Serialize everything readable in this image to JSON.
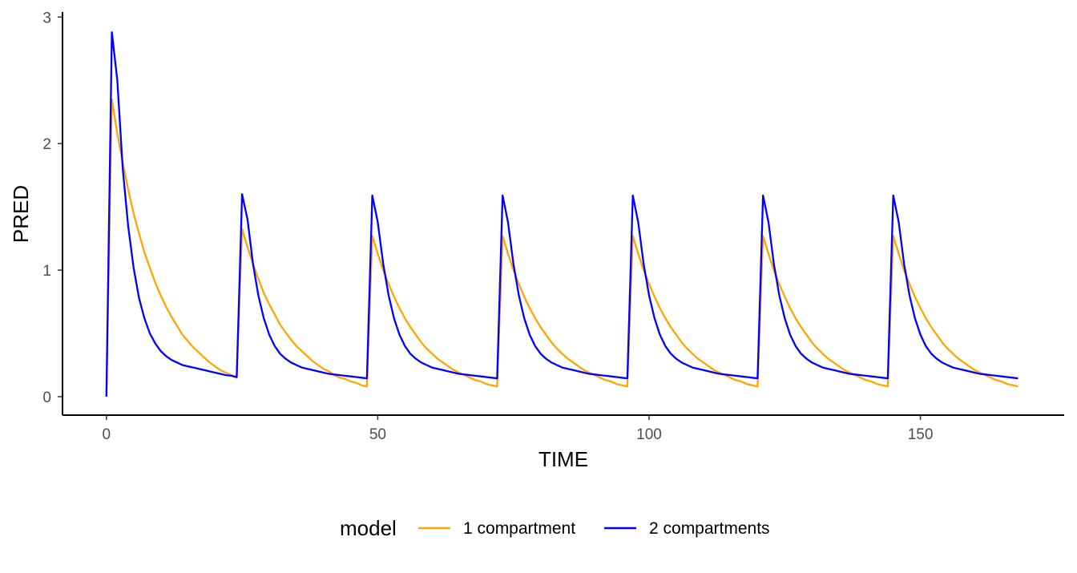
{
  "chart_data": {
    "type": "line",
    "title": "",
    "xlabel": "TIME",
    "ylabel": "PRED",
    "xlim": [
      -8.1,
      176.5
    ],
    "ylim": [
      -0.146,
      3.04
    ],
    "xticks": [
      0,
      50,
      100,
      150
    ],
    "yticks": [
      0,
      1,
      2,
      3
    ],
    "grid": false,
    "legend": {
      "title": "model",
      "placement": "bottom"
    },
    "x": [
      0,
      1,
      2,
      3,
      4,
      5,
      6,
      7,
      8,
      9,
      10,
      11,
      12,
      13,
      14,
      15,
      16,
      17,
      18,
      19,
      20,
      21,
      22,
      23,
      24,
      25,
      26,
      27,
      28,
      29,
      30,
      31,
      32,
      33,
      34,
      35,
      36,
      37,
      38,
      39,
      40,
      41,
      42,
      43,
      44,
      45,
      46,
      47,
      48,
      49,
      50,
      51,
      52,
      53,
      54,
      55,
      56,
      57,
      58,
      59,
      60,
      61,
      62,
      63,
      64,
      65,
      66,
      67,
      68,
      69,
      70,
      71,
      72,
      73,
      74,
      75,
      76,
      77,
      78,
      79,
      80,
      81,
      82,
      83,
      84,
      85,
      86,
      87,
      88,
      89,
      90,
      91,
      92,
      93,
      94,
      95,
      96,
      97,
      98,
      99,
      100,
      101,
      102,
      103,
      104,
      105,
      106,
      107,
      108,
      109,
      110,
      111,
      112,
      113,
      114,
      115,
      116,
      117,
      118,
      119,
      120,
      121,
      122,
      123,
      124,
      125,
      126,
      127,
      128,
      129,
      130,
      131,
      132,
      133,
      134,
      135,
      136,
      137,
      138,
      139,
      140,
      141,
      142,
      143,
      144,
      145,
      146,
      147,
      148,
      149,
      150,
      151,
      152,
      153,
      154,
      155,
      156,
      157,
      158,
      159,
      160,
      161,
      162,
      163,
      164,
      165,
      166,
      167,
      168
    ],
    "series": [
      {
        "name": "1 compartment",
        "color": "#FFA500",
        "values": [
          0,
          2.35,
          2.08,
          1.85,
          1.64,
          1.45,
          1.29,
          1.14,
          1.02,
          0.9,
          0.8,
          0.71,
          0.63,
          0.56,
          0.49,
          0.44,
          0.39,
          0.35,
          0.31,
          0.27,
          0.24,
          0.21,
          0.19,
          0.17,
          0.15,
          1.33,
          1.18,
          1.05,
          0.93,
          0.82,
          0.73,
          0.65,
          0.57,
          0.51,
          0.45,
          0.4,
          0.36,
          0.32,
          0.28,
          0.25,
          0.22,
          0.2,
          0.17,
          0.15,
          0.14,
          0.12,
          0.11,
          0.09,
          0.08,
          1.27,
          1.13,
          1.0,
          0.89,
          0.79,
          0.7,
          0.62,
          0.55,
          0.49,
          0.43,
          0.38,
          0.34,
          0.3,
          0.27,
          0.24,
          0.21,
          0.19,
          0.17,
          0.15,
          0.13,
          0.12,
          0.1,
          0.09,
          0.08,
          1.27,
          1.13,
          1.0,
          0.89,
          0.79,
          0.7,
          0.62,
          0.55,
          0.49,
          0.43,
          0.38,
          0.34,
          0.3,
          0.27,
          0.24,
          0.21,
          0.19,
          0.17,
          0.15,
          0.13,
          0.12,
          0.1,
          0.09,
          0.08,
          1.27,
          1.13,
          1.0,
          0.89,
          0.79,
          0.7,
          0.62,
          0.55,
          0.49,
          0.43,
          0.38,
          0.34,
          0.3,
          0.27,
          0.24,
          0.21,
          0.19,
          0.17,
          0.15,
          0.13,
          0.12,
          0.1,
          0.09,
          0.08,
          1.27,
          1.13,
          1.0,
          0.89,
          0.79,
          0.7,
          0.62,
          0.55,
          0.49,
          0.43,
          0.38,
          0.34,
          0.3,
          0.27,
          0.24,
          0.21,
          0.19,
          0.17,
          0.15,
          0.13,
          0.12,
          0.1,
          0.09,
          0.08,
          1.27,
          1.13,
          1.0,
          0.89,
          0.79,
          0.7,
          0.62,
          0.55,
          0.49,
          0.43,
          0.38,
          0.34,
          0.3,
          0.27,
          0.24,
          0.21,
          0.19,
          0.17,
          0.15,
          0.13,
          0.12,
          0.1,
          0.09,
          0.08
        ]
      },
      {
        "name": "2 compartments",
        "color": "#0000FF",
        "values": [
          0,
          2.88,
          2.5,
          1.8,
          1.35,
          1.02,
          0.78,
          0.62,
          0.5,
          0.42,
          0.36,
          0.32,
          0.29,
          0.27,
          0.25,
          0.24,
          0.23,
          0.22,
          0.21,
          0.2,
          0.19,
          0.18,
          0.17,
          0.165,
          0.155,
          1.6,
          1.4,
          1.05,
          0.8,
          0.62,
          0.49,
          0.4,
          0.34,
          0.3,
          0.27,
          0.25,
          0.23,
          0.22,
          0.21,
          0.2,
          0.19,
          0.18,
          0.175,
          0.17,
          0.165,
          0.16,
          0.155,
          0.15,
          0.145,
          1.59,
          1.38,
          1.05,
          0.8,
          0.62,
          0.49,
          0.4,
          0.34,
          0.3,
          0.27,
          0.25,
          0.23,
          0.22,
          0.21,
          0.2,
          0.19,
          0.18,
          0.175,
          0.17,
          0.165,
          0.16,
          0.155,
          0.15,
          0.145,
          1.59,
          1.38,
          1.05,
          0.8,
          0.62,
          0.49,
          0.4,
          0.34,
          0.3,
          0.27,
          0.25,
          0.23,
          0.22,
          0.21,
          0.2,
          0.19,
          0.18,
          0.175,
          0.17,
          0.165,
          0.16,
          0.155,
          0.15,
          0.145,
          1.59,
          1.38,
          1.05,
          0.8,
          0.62,
          0.49,
          0.4,
          0.34,
          0.3,
          0.27,
          0.25,
          0.23,
          0.22,
          0.21,
          0.2,
          0.19,
          0.18,
          0.175,
          0.17,
          0.165,
          0.16,
          0.155,
          0.15,
          0.145,
          1.59,
          1.38,
          1.05,
          0.8,
          0.62,
          0.49,
          0.4,
          0.34,
          0.3,
          0.27,
          0.25,
          0.23,
          0.22,
          0.21,
          0.2,
          0.19,
          0.18,
          0.175,
          0.17,
          0.165,
          0.16,
          0.155,
          0.15,
          0.145,
          1.59,
          1.38,
          1.05,
          0.8,
          0.62,
          0.49,
          0.4,
          0.34,
          0.3,
          0.27,
          0.25,
          0.23,
          0.22,
          0.21,
          0.2,
          0.19,
          0.18,
          0.175,
          0.17,
          0.165,
          0.16,
          0.155,
          0.15,
          0.145
        ]
      }
    ]
  }
}
